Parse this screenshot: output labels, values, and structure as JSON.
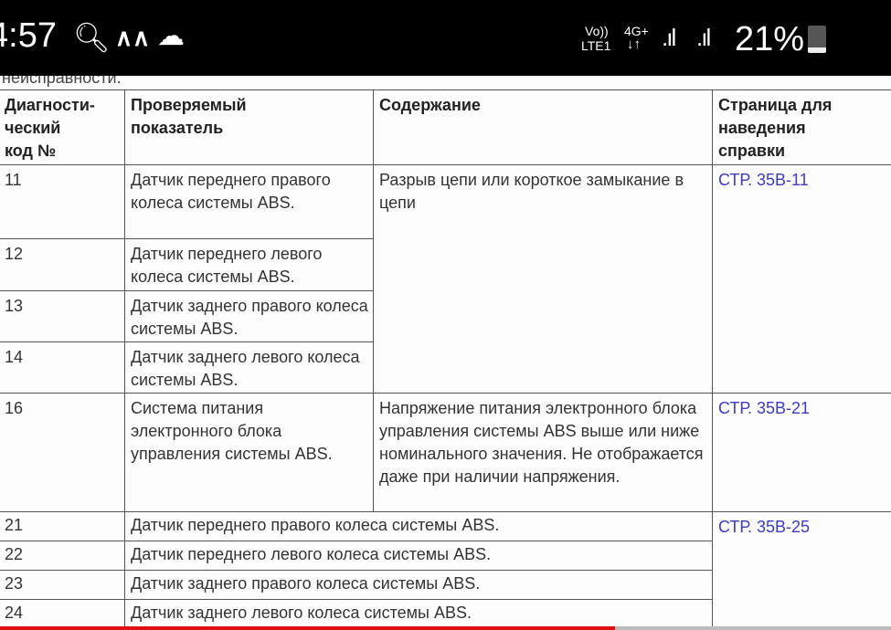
{
  "status_bar": {
    "time": "4:57",
    "volte": "Vo))",
    "lte": "LTE1",
    "network": "4G+",
    "battery": "21%",
    "battery_level": 0.21,
    "icons": [
      "search-icon",
      "signal-app-icon",
      "weather-sun-cloud-icon",
      "data-arrows-icon",
      "signal-sim1-icon",
      "signal-sim2-icon",
      "battery-icon"
    ]
  },
  "doc": {
    "partial_text": "неисправности.",
    "headers": [
      "Диагности-\nческий\nкод №",
      "Проверяемый\nпоказатель",
      "Содержание",
      "Страница для\nнаведения\nсправки"
    ],
    "rows": [
      {
        "code": "11",
        "indicator": "Датчик переднего правого колеса системы ABS."
      },
      {
        "code": "12",
        "indicator": "Датчик переднего левого колеса системы ABS."
      },
      {
        "code": "13",
        "indicator": "Датчик заднего правого колеса системы ABS."
      },
      {
        "code": "14",
        "indicator": "Датчик заднего левого колеса системы ABS."
      },
      {
        "code": "16",
        "indicator": "Система питания электронного блока управления системы ABS.",
        "content": "Напряжение питания электронного блока управления системы ABS выше или ниже номинального значения. Не отображается даже при наличии напряжения.",
        "page": "СТР. 35B-21"
      },
      {
        "code": "21",
        "indicator": "Датчик переднего правого колеса системы ABS."
      },
      {
        "code": "22",
        "indicator": "Датчик переднего левого колеса системы ABS."
      },
      {
        "code": "23",
        "indicator": "Датчик заднего правого колеса системы ABS."
      },
      {
        "code": "24",
        "indicator": "Датчик заднего левого колеса системы ABS."
      }
    ],
    "group1_content": "Разрыв цепи или короткое замыкание в цепи",
    "group1_page": "СТР. 35B-11",
    "group3_page": "СТР. 35B-25"
  },
  "video": {
    "progress": 0.69,
    "progress_color": "#e01010"
  }
}
